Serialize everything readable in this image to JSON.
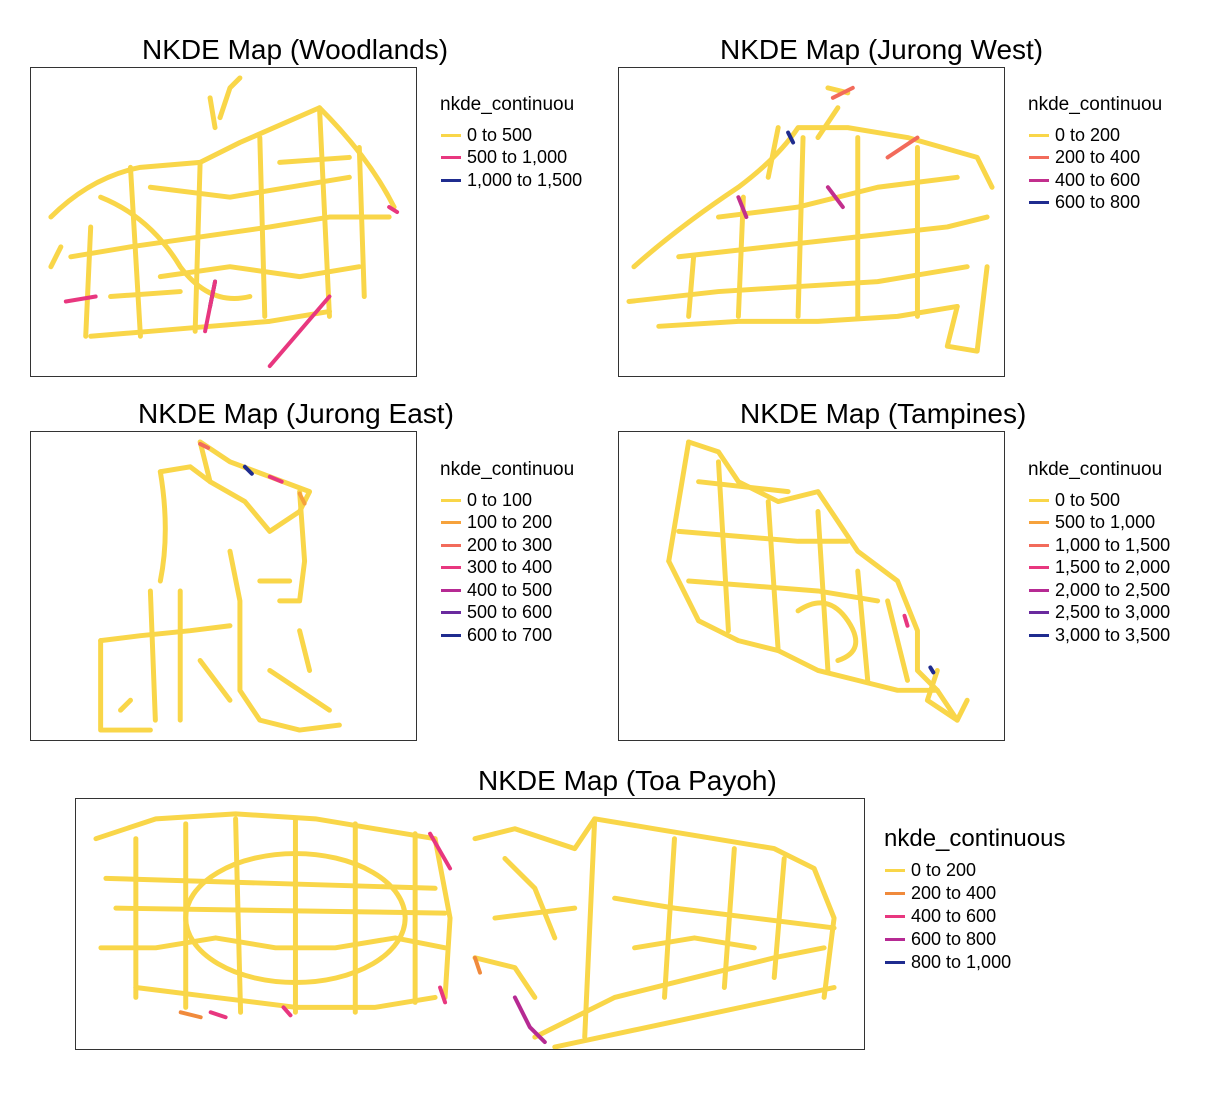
{
  "maps": [
    {
      "title": "NKDE Map (Woodlands)",
      "legend_title": "nkde_continuou",
      "legend": [
        {
          "label": "0 to 500",
          "color": "#F9D649"
        },
        {
          "label": "500 to 1,000",
          "color": "#E8377F"
        },
        {
          "label": "1,000 to 1,500",
          "color": "#1F2C8F"
        }
      ]
    },
    {
      "title": "NKDE Map (Jurong West)",
      "legend_title": "nkde_continuou",
      "legend": [
        {
          "label": "0 to 200",
          "color": "#F9D649"
        },
        {
          "label": "200 to 400",
          "color": "#F26B5B"
        },
        {
          "label": "400 to 600",
          "color": "#C22F8D"
        },
        {
          "label": "600 to 800",
          "color": "#1F2C8F"
        }
      ]
    },
    {
      "title": "NKDE Map (Jurong East)",
      "legend_title": "nkde_continuou",
      "legend": [
        {
          "label": "0 to 100",
          "color": "#F9D649"
        },
        {
          "label": "100 to 200",
          "color": "#F6A23C"
        },
        {
          "label": "200 to 300",
          "color": "#F26B5B"
        },
        {
          "label": "300 to 400",
          "color": "#E8377F"
        },
        {
          "label": "400 to 500",
          "color": "#B62A93"
        },
        {
          "label": "500 to 600",
          "color": "#6A2A9E"
        },
        {
          "label": "600 to 700",
          "color": "#1F2C8F"
        }
      ]
    },
    {
      "title": "NKDE Map (Tampines)",
      "legend_title": "nkde_continuou",
      "legend": [
        {
          "label": "0 to 500",
          "color": "#F9D649"
        },
        {
          "label": "500 to 1,000",
          "color": "#F6A23C"
        },
        {
          "label": "1,000 to 1,500",
          "color": "#F26B5B"
        },
        {
          "label": "1,500 to 2,000",
          "color": "#E8377F"
        },
        {
          "label": "2,000 to 2,500",
          "color": "#B62A93"
        },
        {
          "label": "2,500 to 3,000",
          "color": "#6A2A9E"
        },
        {
          "label": "3,000 to 3,500",
          "color": "#1F2C8F"
        }
      ]
    },
    {
      "title": "NKDE Map (Toa Payoh)",
      "legend_title": "nkde_continuous",
      "legend": [
        {
          "label": "0 to 200",
          "color": "#F9D649"
        },
        {
          "label": "200 to 400",
          "color": "#F08A3C"
        },
        {
          "label": "400 to 600",
          "color": "#E8377F"
        },
        {
          "label": "600 to 800",
          "color": "#B62A93"
        },
        {
          "label": "800 to 1,000",
          "color": "#1F2C8F"
        }
      ]
    }
  ]
}
